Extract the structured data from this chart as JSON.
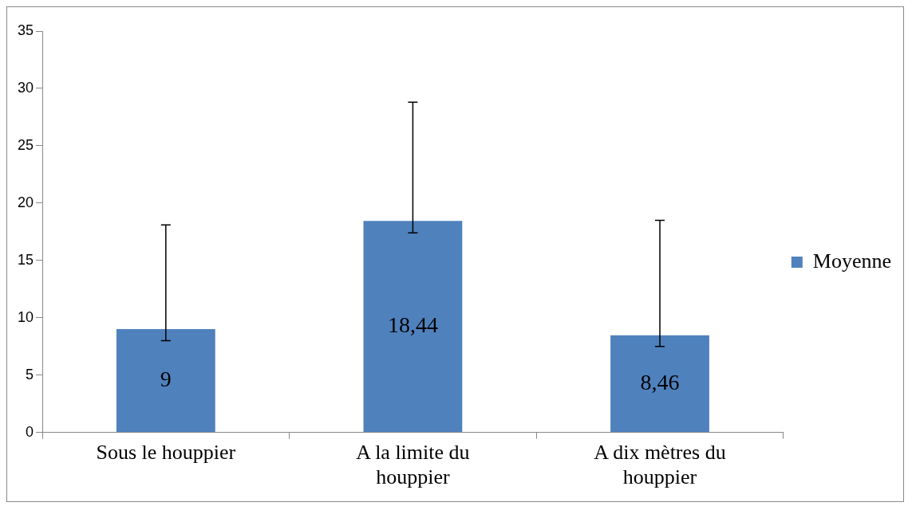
{
  "chart_data": {
    "type": "bar",
    "categories": [
      "Sous le houppier",
      "A la limite du houppier",
      "A dix mètres du houppier"
    ],
    "series": [
      {
        "name": "Moyenne",
        "color": "#4f81bd",
        "values": [
          9,
          18.44,
          8.46
        ],
        "value_labels": [
          "9",
          "18,44",
          "8,46"
        ],
        "errors": [
          [
            8,
            18.1
          ],
          [
            17.4,
            28.8
          ],
          [
            7.5,
            18.5
          ]
        ]
      }
    ],
    "ylim": [
      0,
      35
    ],
    "yticks": [
      0,
      5,
      10,
      15,
      20,
      25,
      30,
      35
    ],
    "legend": "right"
  }
}
